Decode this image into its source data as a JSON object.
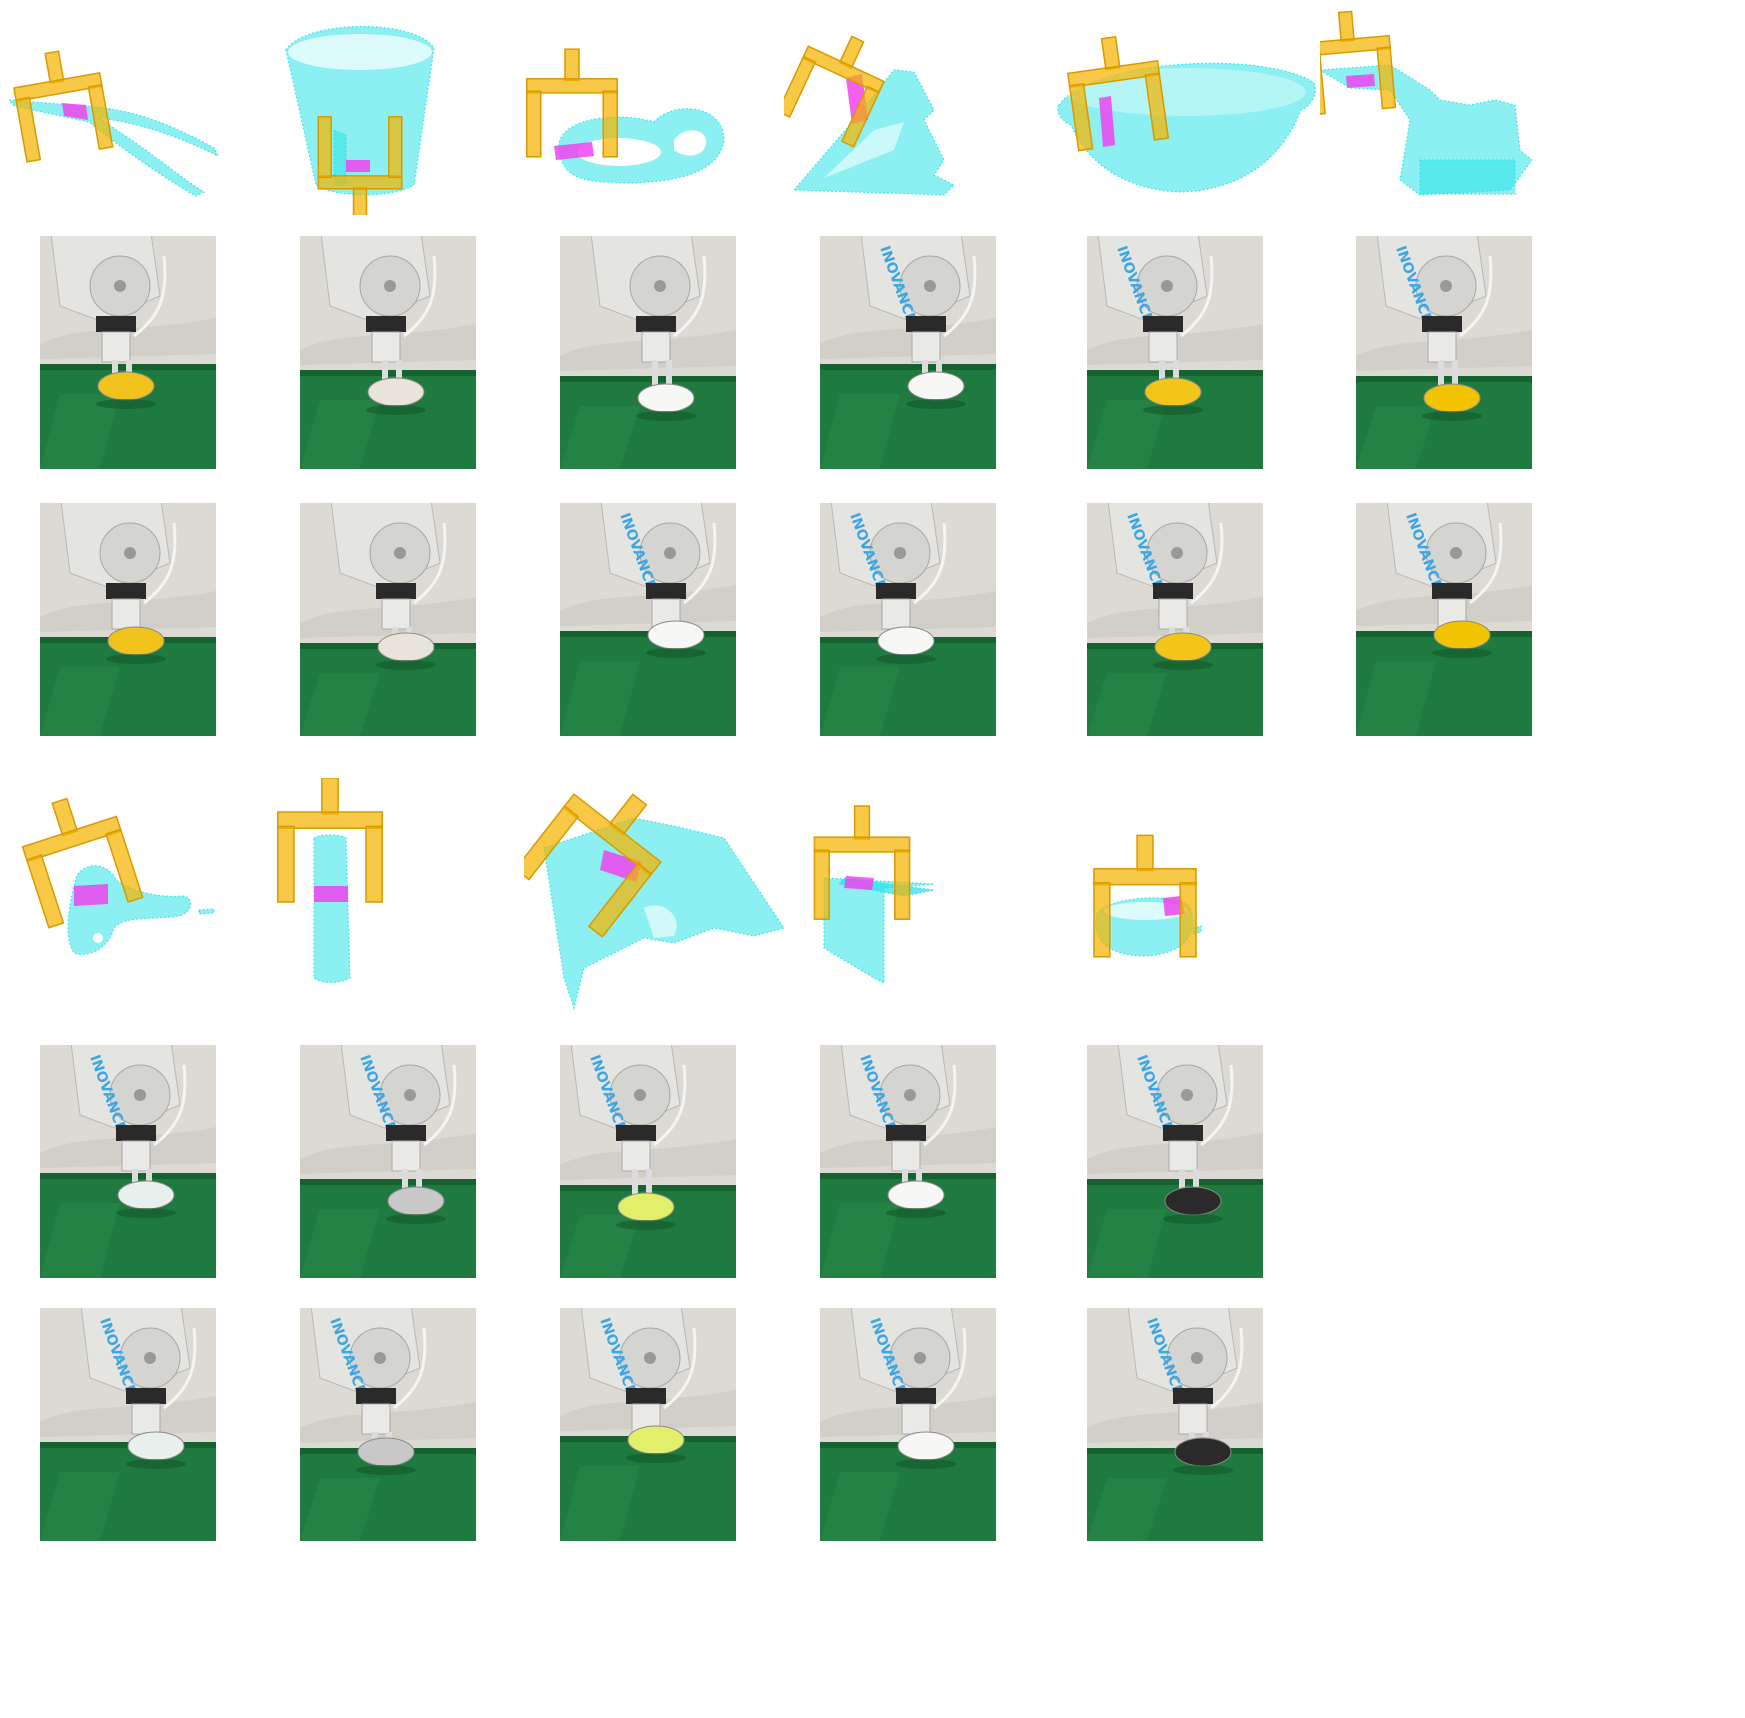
{
  "colors": {
    "gripper": "#f4b400",
    "gripper_edge": "#d99a00",
    "point_cloud": "#2de3e8",
    "contact": "#ee44ee",
    "wall": "#dcdad2",
    "table": "#1e7a3e",
    "table_dark": "#146230",
    "robot": "#e4e4e0",
    "flange": "#2a2a2a",
    "brand_text": "#3aa6e6"
  },
  "brand_text": "INOVANCE",
  "groups": [
    {
      "columns": 6,
      "objects": [
        {
          "name": "pliers",
          "cloud": "pliers",
          "object_color": "#f1c21b"
        },
        {
          "name": "mug",
          "cloud": "mug",
          "object_color": "#e8e4dc"
        },
        {
          "name": "hook",
          "cloud": "hook",
          "object_color": "#f7f7f5"
        },
        {
          "name": "phone-stand",
          "cloud": "stand",
          "object_color": "#f7f7f5"
        },
        {
          "name": "bowl",
          "cloud": "bowl",
          "object_color": "#f3c518"
        },
        {
          "name": "toy-excavator",
          "cloud": "excavator",
          "object_color": "#f2c300"
        }
      ]
    },
    {
      "columns": 5,
      "objects": [
        {
          "name": "spray-bottle",
          "cloud": "spray",
          "object_color": "#e8f0ee"
        },
        {
          "name": "pipe",
          "cloud": "pipe",
          "object_color": "#c8c8c8"
        },
        {
          "name": "tissue-box",
          "cloud": "tissue",
          "object_color": "#e2ef6a"
        },
        {
          "name": "plate",
          "cloud": "plate",
          "object_color": "#f7f7f5"
        },
        {
          "name": "tape-roll",
          "cloud": "tape",
          "object_color": "#2a2a2a"
        }
      ]
    }
  ]
}
